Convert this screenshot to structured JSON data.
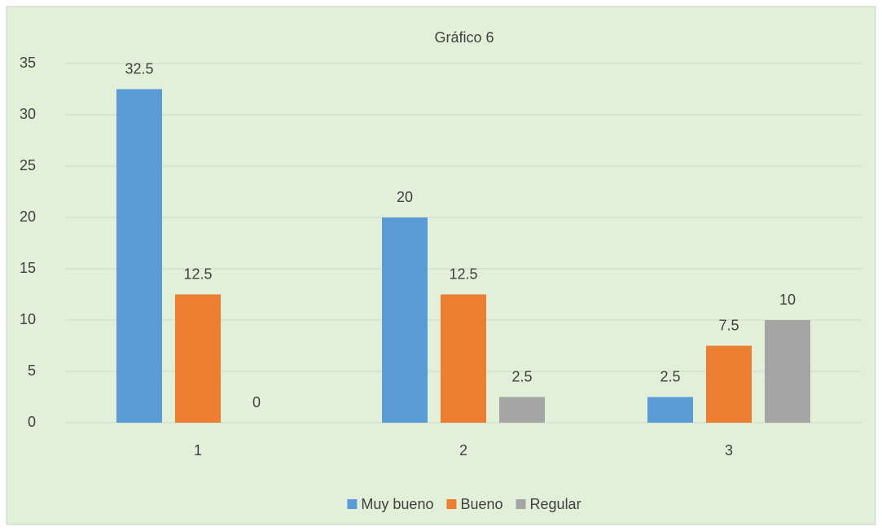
{
  "chart_data": {
    "type": "bar",
    "title": "Gráfico 6",
    "categories": [
      "1",
      "2",
      "3"
    ],
    "series": [
      {
        "name": "Muy bueno",
        "color": "#5b9bd5",
        "values": [
          32.5,
          20,
          2.5
        ]
      },
      {
        "name": "Bueno",
        "color": "#ed7d31",
        "values": [
          12.5,
          12.5,
          7.5
        ]
      },
      {
        "name": "Regular",
        "color": "#a5a5a5",
        "values": [
          0,
          2.5,
          10
        ]
      }
    ],
    "ylim": [
      0,
      35
    ],
    "yticks": [
      0,
      5,
      10,
      15,
      20,
      25,
      30,
      35
    ],
    "grid": true,
    "legend": "bottom"
  }
}
